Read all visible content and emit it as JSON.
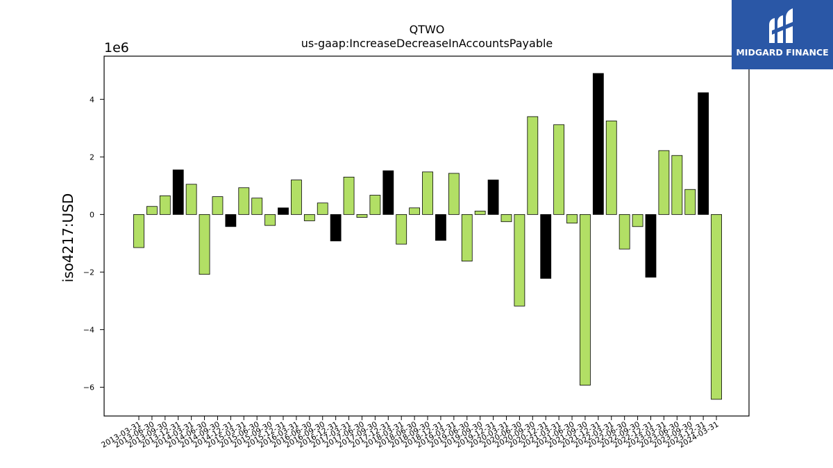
{
  "chart_data": {
    "type": "bar",
    "title": "QTWO",
    "subtitle": "us-gaap:IncreaseDecreaseInAccountsPayable",
    "ylabel": "iso4217:USD",
    "xlabel": "",
    "y_offset_label": "1e6",
    "ylim": [
      -7.0,
      5.5
    ],
    "yticks": [
      -6,
      -4,
      -2,
      0,
      2,
      4
    ],
    "grid": false,
    "categories": [
      "2013-03-31",
      "2013-06-30",
      "2013-09-30",
      "2013-12-31",
      "2014-03-31",
      "2014-06-30",
      "2014-09-30",
      "2014-12-31",
      "2015-03-31",
      "2015-06-30",
      "2015-09-30",
      "2015-12-31",
      "2016-03-31",
      "2016-06-30",
      "2016-09-30",
      "2016-12-31",
      "2017-03-31",
      "2017-06-30",
      "2017-09-30",
      "2017-12-31",
      "2018-03-31",
      "2018-06-30",
      "2018-09-30",
      "2018-12-31",
      "2019-03-31",
      "2019-06-30",
      "2019-09-30",
      "2019-12-31",
      "2020-03-31",
      "2020-06-30",
      "2020-09-30",
      "2020-12-31",
      "2021-03-31",
      "2021-06-30",
      "2021-09-30",
      "2021-12-31",
      "2022-03-31",
      "2022-06-30",
      "2022-09-30",
      "2022-12-31",
      "2023-03-31",
      "2023-06-30",
      "2023-09-30",
      "2023-12-31",
      "2024-03-31"
    ],
    "values": [
      -1.15,
      0.28,
      0.65,
      1.55,
      1.05,
      -2.08,
      0.62,
      -0.42,
      0.93,
      0.57,
      -0.38,
      0.23,
      1.2,
      -0.22,
      0.4,
      -0.92,
      1.3,
      -0.1,
      0.67,
      1.52,
      -1.03,
      0.23,
      1.48,
      -0.9,
      1.43,
      -1.62,
      0.12,
      1.2,
      -0.25,
      -3.18,
      3.4,
      -2.22,
      3.12,
      -0.3,
      -5.93,
      4.9,
      3.25,
      -1.2,
      -0.42,
      -2.18,
      2.22,
      2.05,
      0.87,
      4.23,
      -6.42
    ],
    "highlight": [
      false,
      false,
      false,
      true,
      false,
      false,
      false,
      true,
      false,
      false,
      false,
      true,
      false,
      false,
      false,
      true,
      false,
      false,
      false,
      true,
      false,
      false,
      false,
      true,
      false,
      false,
      false,
      true,
      false,
      false,
      false,
      true,
      false,
      false,
      false,
      true,
      false,
      false,
      false,
      true,
      false,
      false,
      false,
      true,
      false
    ],
    "colors": {
      "bar": "#b2df65",
      "highlight": "#000000",
      "edge": "#000000"
    }
  },
  "logo": {
    "text": "MIDGARD FINANCE",
    "background": "#2a57a6"
  }
}
